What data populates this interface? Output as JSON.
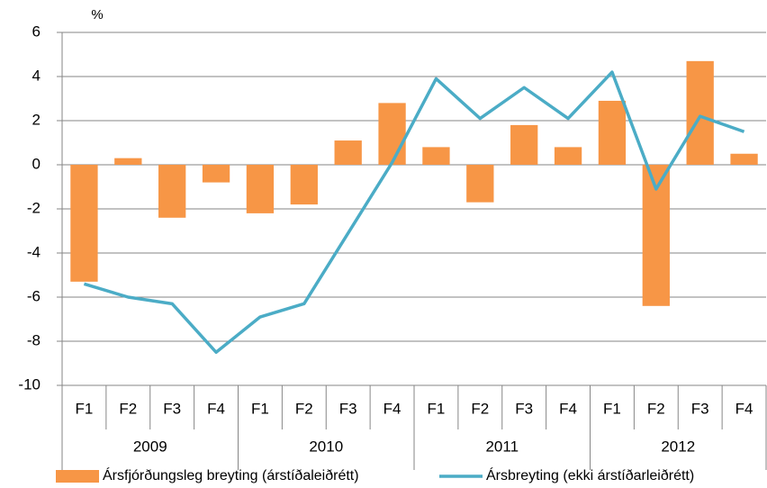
{
  "chart_data": {
    "type": "bar_line",
    "y_label": "%",
    "categories": [
      "F1",
      "F2",
      "F3",
      "F4",
      "F1",
      "F2",
      "F3",
      "F4",
      "F1",
      "F2",
      "F3",
      "F4",
      "F1",
      "F2",
      "F3",
      "F4"
    ],
    "groups": [
      "2009",
      "2010",
      "2011",
      "2012"
    ],
    "series": [
      {
        "name": "Ársfjórðungsleg breyting (árstíðaleiðrétt)",
        "type": "bar",
        "color": "#f79646",
        "values": [
          -5.3,
          0.3,
          -2.4,
          -0.8,
          -2.2,
          -1.8,
          1.1,
          2.8,
          0.8,
          -1.7,
          1.8,
          0.8,
          2.9,
          -6.4,
          4.7,
          0.5
        ]
      },
      {
        "name": "Ársbreyting (ekki árstíðarleiðrétt)",
        "type": "line",
        "color": "#4bacc6",
        "values": [
          -5.4,
          -6.0,
          -6.3,
          -8.5,
          -6.9,
          -6.3,
          -3.1,
          0.1,
          3.9,
          2.1,
          3.5,
          2.1,
          4.2,
          -1.1,
          2.2,
          1.5
        ]
      }
    ],
    "ylim": [
      -10,
      6
    ],
    "yticks": [
      -10,
      -8,
      -6,
      -4,
      -2,
      0,
      2,
      4,
      6
    ],
    "grid": true,
    "legend": "bottom"
  }
}
